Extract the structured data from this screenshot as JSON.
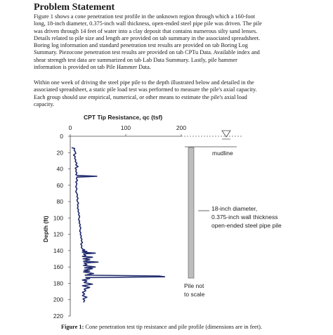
{
  "heading": "Problem Statement",
  "paragraph1_lines": [
    "Figure 1 shows a cone penetration test profile in the unknown region through which a 160-foot",
    "long, 18-inch diameter, 0.375-inch wall thickness, open-ended steel pipe pile was driven. The pile",
    "was driven through 14 feet of water into a clay deposit that contains numerous silty sand lenses.",
    "Details related to pile size and length are provided on tab summary in the associated spreadsheet.",
    "Boring log information and standard penetration test results are provided on tab Boring Log",
    "Summary. Piezocone penetration test results are provided on tab CPTu Data. Available index and",
    "shear strength test data are summarized on tab Lab Data Summary. Lastly, pile hammer",
    "information is provided on tab Pile Hammer Data."
  ],
  "paragraph2_lines": [
    "Within one week of driving the steel pipe pile to the depth illustrated below and detailed in the",
    "associated spreadsheet, a static pile load test was performed to measure the pile's axial capacity.",
    "Each group should use empirical, numerical, or other means to estimate the pile's axial load",
    "capacity."
  ],
  "figure": {
    "annotations": {
      "mudline": "mudline",
      "pile_desc": [
        "18-inch diameter,",
        "0.375-inch wall thickness",
        "open-ended steel pipe pile"
      ],
      "pile_note": [
        "Pile not",
        "to scale"
      ]
    },
    "caption_label": "Figure 1:",
    "caption_text": " Cone penetration test tip resistance and pile profile (dimensions are in feet)."
  },
  "chart_data": {
    "type": "line",
    "title": "CPT Tip Resistance, qc (tsf)",
    "xlabel": "CPT Tip Resistance, qc (tsf)",
    "ylabel": "Depth (ft)",
    "xlim": [
      0,
      200
    ],
    "ylim": [
      0,
      220
    ],
    "x_ticks": [
      0,
      100,
      200
    ],
    "y_ticks": [
      0,
      20,
      40,
      60,
      80,
      100,
      120,
      140,
      160,
      180,
      200,
      220
    ],
    "y_inverted": true,
    "line_color": "#1f2a6b",
    "series": [
      {
        "points": [
          [
            3,
            14
          ],
          [
            8,
            15
          ],
          [
            7,
            17
          ],
          [
            9,
            19
          ],
          [
            10,
            21
          ],
          [
            6,
            23
          ],
          [
            9,
            25
          ],
          [
            8,
            27
          ],
          [
            10,
            29
          ],
          [
            9,
            31
          ],
          [
            12,
            33
          ],
          [
            10,
            35
          ],
          [
            14,
            37
          ],
          [
            9,
            39
          ],
          [
            11,
            41
          ],
          [
            10,
            43
          ],
          [
            12,
            45
          ],
          [
            10,
            47
          ],
          [
            13,
            48
          ],
          [
            48,
            49
          ],
          [
            12,
            50
          ],
          [
            11,
            52
          ],
          [
            13,
            54
          ],
          [
            10,
            56
          ],
          [
            12,
            58
          ],
          [
            11,
            60
          ],
          [
            10,
            62
          ],
          [
            12,
            64
          ],
          [
            11,
            66
          ],
          [
            10,
            68
          ],
          [
            12,
            70
          ],
          [
            13,
            72
          ],
          [
            12,
            74
          ],
          [
            14,
            76
          ],
          [
            12,
            78
          ],
          [
            13,
            80
          ],
          [
            15,
            82
          ],
          [
            13,
            84
          ],
          [
            14,
            86
          ],
          [
            13,
            88
          ],
          [
            15,
            90
          ],
          [
            14,
            92
          ],
          [
            16,
            94
          ],
          [
            15,
            96
          ],
          [
            17,
            98
          ],
          [
            16,
            100
          ],
          [
            15,
            102
          ],
          [
            17,
            104
          ],
          [
            16,
            106
          ],
          [
            18,
            108
          ],
          [
            17,
            110
          ],
          [
            19,
            112
          ],
          [
            18,
            114
          ],
          [
            17,
            116
          ],
          [
            19,
            118
          ],
          [
            18,
            120
          ],
          [
            20,
            122
          ],
          [
            19,
            124
          ],
          [
            21,
            126
          ],
          [
            20,
            128
          ],
          [
            22,
            130
          ],
          [
            19,
            132
          ],
          [
            21,
            134
          ],
          [
            20,
            136
          ],
          [
            22,
            138
          ],
          [
            26,
            139
          ],
          [
            22,
            140
          ],
          [
            30,
            141
          ],
          [
            22,
            142
          ],
          [
            45,
            143
          ],
          [
            24,
            144
          ],
          [
            28,
            146
          ],
          [
            22,
            147
          ],
          [
            40,
            148
          ],
          [
            23,
            150
          ],
          [
            35,
            151
          ],
          [
            24,
            153
          ],
          [
            50,
            154
          ],
          [
            25,
            155
          ],
          [
            30,
            157
          ],
          [
            24,
            158
          ],
          [
            45,
            160
          ],
          [
            26,
            161
          ],
          [
            40,
            162
          ],
          [
            25,
            164
          ],
          [
            35,
            165
          ],
          [
            24,
            166
          ],
          [
            42,
            168
          ],
          [
            27,
            170
          ],
          [
            160,
            171
          ],
          [
            170,
            172
          ],
          [
            28,
            173
          ],
          [
            35,
            174
          ],
          [
            22,
            176
          ],
          [
            30,
            177
          ],
          [
            25,
            179
          ],
          [
            40,
            181
          ],
          [
            22,
            183
          ],
          [
            35,
            185
          ],
          [
            25,
            187
          ],
          [
            28,
            189
          ],
          [
            22,
            191
          ],
          [
            26,
            193
          ],
          [
            22,
            195
          ],
          [
            30,
            197
          ],
          [
            23,
            199
          ],
          [
            26,
            201
          ],
          [
            24,
            203
          ]
        ]
      }
    ]
  }
}
